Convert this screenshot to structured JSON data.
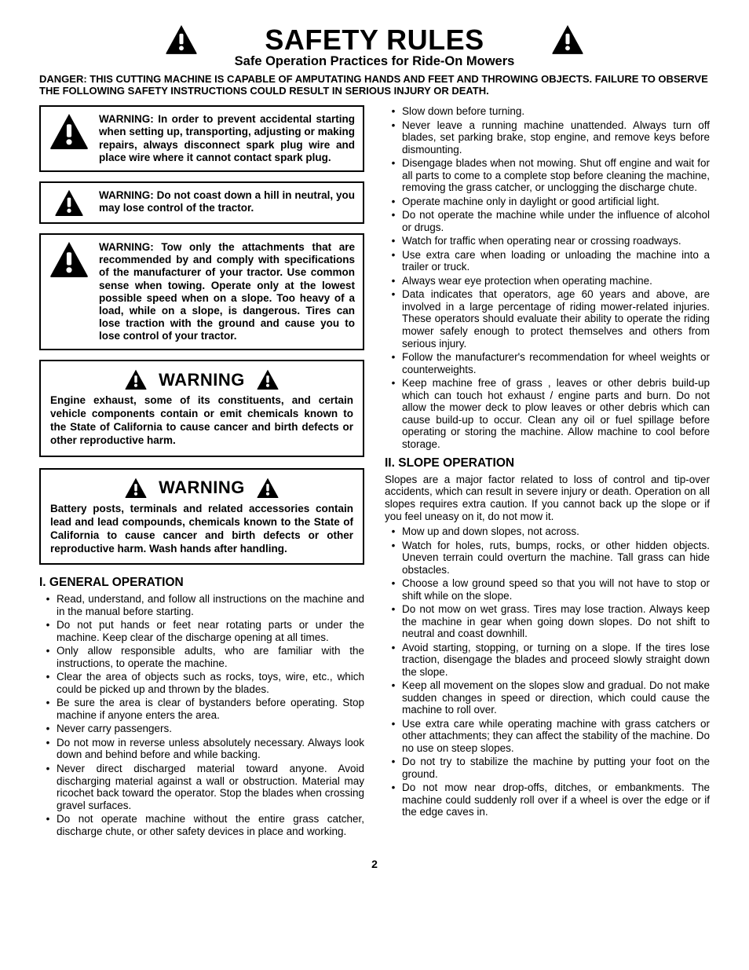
{
  "title": "SAFETY RULES",
  "subtitle": "Safe Operation Practices for Ride-On Mowers",
  "danger": "DANGER:  THIS CUTTING MACHINE IS CAPABLE OF AMPUTATING HANDS AND FEET AND THROWING OBJECTS.  FAILURE TO OBSERVE THE FOLLOWING SAFETY INSTRUCTIONS COULD RESULT IN SERIOUS INJURY OR DEATH.",
  "warningBoxes": [
    "WARNING: In order to prevent accidental starting when setting up, transporting, adjusting or making repairs, always disconnect spark plug wire and place wire where it cannot contact spark plug.",
    "WARNING: Do not coast down a hill in neutral, you may lose control of the tractor.",
    "WARNING: Tow only the attachments that are recommended by and comply with specifications of the manufacturer of your tractor. Use common sense when towing. Operate only at the lowest possible speed when on a slope.  Too heavy of a load, while on a slope, is dangerous.  Tires can lose traction with the ground and cause you to lose control of your tractor."
  ],
  "calWarn1": {
    "heading": "WARNING",
    "body": "Engine exhaust, some of its constituents, and certain vehicle components contain or emit chemicals known to the State of California to cause cancer and birth defects or other reproductive harm."
  },
  "calWarn2": {
    "heading": "WARNING",
    "body": "Battery posts, terminals and related accessories contain lead and lead compounds, chemicals known to the State of California to cause cancer and birth defects or other reproductive harm. Wash hands after handling."
  },
  "section1": {
    "heading": "I. GENERAL OPERATION",
    "items": [
      "Read, understand, and follow all instructions on the machine and in the manual before starting.",
      "Do not put hands or feet near rotating parts or under the machine. Keep clear of the discharge opening at all times.",
      "Only allow responsible adults, who are familiar with the instructions, to operate the machine.",
      "Clear the area of objects such as rocks, toys, wire, etc., which could be picked up and thrown by the blades.",
      "Be sure the area is clear of bystanders before operating.  Stop machine if anyone enters the area.",
      "Never carry passengers.",
      "Do not mow in reverse unless absolutely necessary.  Always look down and behind before and while backing.",
      "Never direct discharged material toward anyone. Avoid discharging material against a wall or obstruction.  Material may ricochet back toward the operator. Stop the blades when crossing gravel surfaces.",
      "Do not operate machine without the entire grass catcher, discharge chute, or other safety devices in place and working."
    ]
  },
  "section1cont": [
    "Slow down before turning.",
    "Never leave a running machine unattended.  Always turn off blades, set parking brake, stop engine, and remove keys before dismounting.",
    "Disengage blades when not mowing. Shut off engine and wait for all parts to come to a complete stop before cleaning the machine, removing the grass catcher, or unclogging the discharge chute.",
    "Operate machine only in daylight or good artificial light.",
    "Do not operate the machine while under the influence of alcohol or drugs.",
    "Watch for traffic when operating near or crossing roadways.",
    "Use extra care when loading or unloading the machine into a trailer or truck.",
    "Always wear eye protection when operating machine.",
    "Data indicates that operators, age 60 years and above, are involved in a large percentage of riding mower-related injuries.  These operators should evaluate their ability to operate the riding mower safely enough to protect themselves and others from serious injury.",
    "Follow the manufacturer's recommendation for wheel weights or counterweights.",
    "Keep machine free of grass , leaves or other debris build-up which can touch hot exhaust / engine parts and burn. Do not allow the mower deck to plow leaves or other debris which can cause build-up to occur. Clean any oil or fuel spillage before operating or storing the machine. Allow machine to cool before storage."
  ],
  "section2": {
    "heading": "II. SLOPE OPERATION",
    "intro": "Slopes are a major factor related to loss of control and tip-over accidents, which can result in severe injury or death.  Operation on all slopes requires extra caution.  If you cannot back up the slope or if you feel uneasy on it, do not mow it.",
    "items": [
      "Mow up and down slopes, not across.",
      "Watch for holes, ruts, bumps, rocks, or other hidden objects.  Uneven terrain could overturn the machine.  Tall grass can hide obstacles.",
      "Choose a low ground speed so that you will not have to stop or shift while on the slope.",
      "Do not mow on wet grass. Tires may lose traction. Always keep the machine in gear when going down slopes. Do not shift to neutral and coast downhill.",
      "Avoid starting, stopping, or turning on a slope.  If the tires lose traction,  disengage the blades and proceed slowly straight down the slope.",
      "Keep all movement on the slopes slow and gradual.  Do not make sudden changes in speed or direction, which could cause the machine to roll over.",
      "Use extra care while operating machine with grass catchers or other attachments; they can affect the stability of the machine. Do no use on steep slopes.",
      "Do not  try to stabilize the machine by putting your foot on the ground.",
      "Do not mow near drop-offs, ditches, or embankments.  The machine could suddenly roll over if a wheel is over the edge or if the edge caves in."
    ]
  },
  "pageNumber": "2",
  "icon": {
    "fill": "#000000",
    "stroke": "#ffffff"
  }
}
